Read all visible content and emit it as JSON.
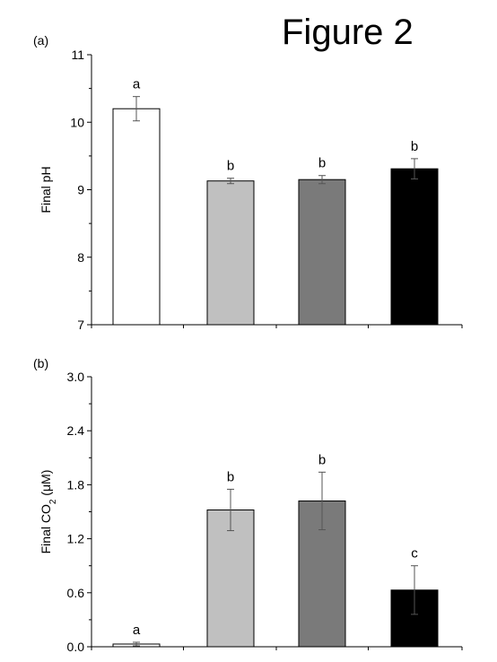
{
  "figure_title": "Figure 2",
  "chart_data": [
    {
      "type": "bar",
      "panel_label": "(a)",
      "ylabel": "Final pH",
      "ylim": [
        7,
        11
      ],
      "yticks": [
        "7",
        "8",
        "9",
        "10",
        "11"
      ],
      "categories": [
        "",
        "",
        "",
        ""
      ],
      "values": [
        10.2,
        9.13,
        9.15,
        9.31
      ],
      "errors": [
        0.18,
        0.04,
        0.06,
        0.15
      ],
      "letters": [
        "a",
        "b",
        "b",
        "b"
      ],
      "colors": [
        "#ffffff",
        "#c0c0c0",
        "#7a7a7a",
        "#000000"
      ]
    },
    {
      "type": "bar",
      "panel_label": "(b)",
      "ylabel": "Final CO",
      "ylabel_sub": "2",
      "ylabel_unit": " (μM)",
      "ylim": [
        0,
        3.0
      ],
      "yticks": [
        "0.0",
        "0.6",
        "1.2",
        "1.8",
        "2.4",
        "3.0"
      ],
      "categories": [
        "",
        "",
        "",
        ""
      ],
      "values": [
        0.03,
        1.52,
        1.62,
        0.63
      ],
      "errors": [
        0.02,
        0.23,
        0.32,
        0.27
      ],
      "letters": [
        "a",
        "b",
        "b",
        "c"
      ],
      "colors": [
        "#ffffff",
        "#c0c0c0",
        "#7a7a7a",
        "#000000"
      ]
    }
  ]
}
